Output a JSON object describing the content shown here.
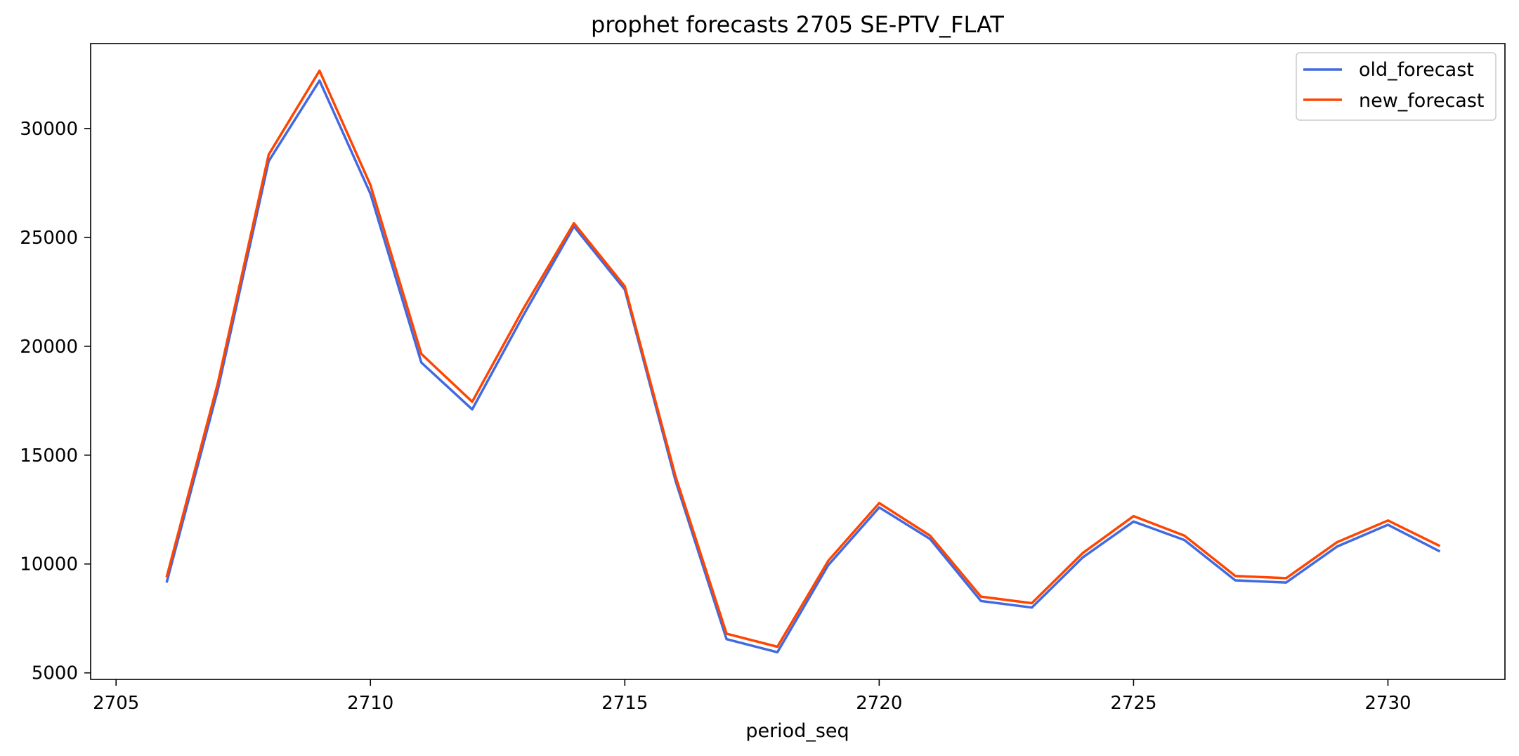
{
  "chart_data": {
    "type": "line",
    "title": "prophet forecasts 2705 SE-PTV_FLAT",
    "xlabel": "period_seq",
    "ylabel": "",
    "xlim": [
      2704.5,
      2732.3
    ],
    "ylim": [
      4700,
      33900
    ],
    "xticks": [
      2705,
      2710,
      2715,
      2720,
      2725,
      2730
    ],
    "yticks": [
      5000,
      10000,
      15000,
      20000,
      25000,
      30000
    ],
    "x": [
      2706,
      2707,
      2708,
      2709,
      2710,
      2711,
      2712,
      2713,
      2714,
      2715,
      2716,
      2717,
      2718,
      2719,
      2720,
      2721,
      2722,
      2723,
      2724,
      2725,
      2726,
      2727,
      2728,
      2729,
      2730,
      2731
    ],
    "series": [
      {
        "name": "old_forecast",
        "color": "#4169e1",
        "values": [
          9200,
          18000,
          28500,
          32200,
          27000,
          19250,
          17100,
          21400,
          25500,
          22600,
          13800,
          6550,
          5950,
          9950,
          12600,
          11150,
          8300,
          8000,
          10300,
          11950,
          11100,
          9250,
          9150,
          10800,
          11800,
          10600
        ]
      },
      {
        "name": "new_forecast",
        "color": "#ff4500",
        "values": [
          9450,
          18300,
          28800,
          32650,
          27400,
          19650,
          17450,
          21700,
          25650,
          22750,
          14000,
          6800,
          6200,
          10150,
          12800,
          11300,
          8500,
          8200,
          10500,
          12200,
          11300,
          9450,
          9350,
          11000,
          12000,
          10850
        ]
      }
    ],
    "grid": false,
    "legend_position": "top-right"
  }
}
